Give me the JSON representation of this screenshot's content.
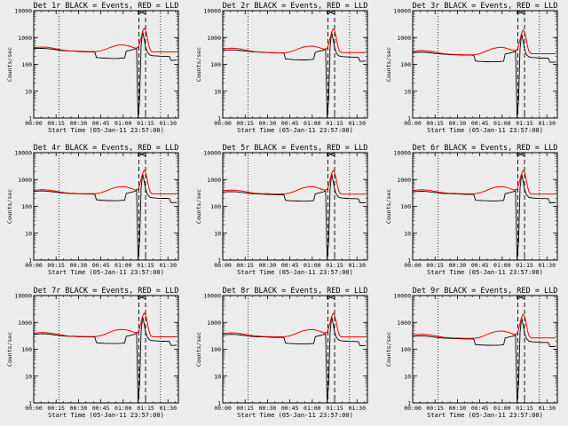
{
  "figure": {
    "background": "#ececec",
    "axis_color": "#000000"
  },
  "chart_data": {
    "type": "line",
    "layout": "3x3 grid",
    "shared": {
      "xlabel": "Start Time (05-Jan-11 23:57:00)",
      "ylabel": "Counts/sec",
      "x_unit": "minutes after 00:00",
      "xlim": [
        0,
        97
      ],
      "ylim": [
        1,
        10000
      ],
      "yscale": "log",
      "xticks": [
        0,
        15,
        30,
        45,
        60,
        75,
        90
      ],
      "xtick_labels": [
        "00:00",
        "00:15",
        "00:30",
        "00:45",
        "01:00",
        "01:15",
        "01:30"
      ],
      "yticks": [
        1,
        10,
        100,
        1000,
        10000
      ],
      "ytick_labels": [
        "1",
        "10",
        "100",
        "1000",
        "10000"
      ],
      "vlines_dotted": [
        17,
        85
      ],
      "vlines_dashed": [
        70.5,
        75
      ],
      "marker_x": 72.5,
      "series_colors": {
        "events": "#000000",
        "lld": "#ff0000"
      },
      "events_x": [
        0,
        3,
        6,
        9,
        12,
        15,
        18,
        21,
        24,
        27,
        30,
        33,
        36,
        39,
        41,
        42,
        44,
        47,
        50,
        53,
        56,
        59,
        61,
        62,
        64,
        67,
        69,
        70,
        71,
        72,
        73,
        74,
        75,
        76,
        77,
        78,
        80,
        83,
        86,
        89,
        91,
        92,
        94,
        96
      ],
      "lld_x": [
        0,
        3,
        6,
        9,
        12,
        15,
        18,
        21,
        24,
        27,
        30,
        33,
        36,
        39,
        42,
        45,
        48,
        51,
        54,
        57,
        60,
        62,
        64,
        66,
        68,
        70,
        71,
        72,
        73,
        74,
        75,
        76,
        77,
        78,
        79,
        80,
        83,
        86,
        89,
        92,
        95,
        96
      ]
    },
    "panels": [
      {
        "title": "Det 1r BLACK = Events, RED = LLD",
        "events": [
          380,
          390,
          395,
          385,
          370,
          350,
          330,
          320,
          315,
          310,
          300,
          295,
          290,
          290,
          285,
          180,
          175,
          170,
          168,
          165,
          165,
          170,
          175,
          310,
          330,
          360,
          400,
          1,
          5,
          500,
          1700,
          900,
          450,
          300,
          250,
          220,
          210,
          205,
          200,
          200,
          195,
          140,
          140,
          145
        ],
        "lld": [
          420,
          430,
          440,
          430,
          410,
          380,
          350,
          330,
          320,
          315,
          310,
          305,
          300,
          300,
          300,
          320,
          360,
          420,
          480,
          520,
          530,
          510,
          480,
          440,
          400,
          420,
          600,
          1000,
          1700,
          2200,
          1900,
          1100,
          550,
          350,
          300,
          290,
          290,
          290,
          290,
          290,
          290,
          290
        ]
      },
      {
        "title": "Det 2r BLACK = Events, RED = LLD",
        "events": [
          330,
          340,
          345,
          340,
          325,
          310,
          300,
          290,
          285,
          280,
          275,
          270,
          265,
          265,
          262,
          160,
          155,
          150,
          148,
          146,
          146,
          150,
          155,
          280,
          300,
          330,
          370,
          1,
          5,
          460,
          1600,
          850,
          420,
          280,
          230,
          205,
          195,
          190,
          185,
          185,
          180,
          130,
          130,
          135
        ],
        "lld": [
          380,
          390,
          400,
          390,
          370,
          345,
          320,
          300,
          290,
          285,
          280,
          275,
          270,
          270,
          272,
          290,
          330,
          385,
          440,
          470,
          480,
          460,
          430,
          400,
          370,
          390,
          560,
          950,
          1600,
          2100,
          1800,
          1050,
          520,
          330,
          285,
          275,
          275,
          275,
          275,
          275,
          275,
          275
        ]
      },
      {
        "title": "Det 3r BLACK = Events, RED = LLD",
        "events": [
          270,
          280,
          285,
          280,
          270,
          255,
          245,
          238,
          232,
          228,
          225,
          222,
          220,
          220,
          218,
          135,
          130,
          128,
          126,
          125,
          125,
          128,
          132,
          240,
          255,
          280,
          310,
          1,
          5,
          400,
          1400,
          750,
          380,
          250,
          210,
          190,
          180,
          175,
          170,
          170,
          168,
          120,
          120,
          122
        ],
        "lld": [
          310,
          320,
          330,
          320,
          305,
          285,
          265,
          250,
          240,
          235,
          232,
          230,
          228,
          228,
          230,
          250,
          290,
          340,
          390,
          420,
          430,
          410,
          380,
          350,
          320,
          340,
          500,
          850,
          1450,
          1900,
          1650,
          950,
          470,
          300,
          260,
          250,
          250,
          250,
          250,
          250,
          250,
          250
        ]
      },
      {
        "title": "Det 4r BLACK = Events, RED = LLD",
        "events": [
          360,
          370,
          375,
          368,
          352,
          335,
          318,
          308,
          302,
          298,
          292,
          288,
          285,
          285,
          282,
          175,
          170,
          166,
          164,
          162,
          162,
          166,
          170,
          300,
          320,
          350,
          390,
          1,
          5,
          480,
          1650,
          880,
          440,
          295,
          245,
          218,
          208,
          202,
          198,
          198,
          194,
          138,
          138,
          142
        ],
        "lld": [
          400,
          410,
          420,
          410,
          390,
          365,
          340,
          320,
          310,
          305,
          300,
          298,
          295,
          295,
          298,
          320,
          365,
          430,
          495,
          535,
          545,
          525,
          490,
          450,
          410,
          430,
          610,
          1020,
          1700,
          2200,
          1900,
          1100,
          550,
          350,
          300,
          290,
          290,
          290,
          290,
          290,
          290,
          290
        ]
      },
      {
        "title": "Det 5r BLACK = Events, RED = LLD",
        "events": [
          340,
          350,
          355,
          348,
          333,
          318,
          302,
          293,
          288,
          284,
          280,
          276,
          272,
          272,
          270,
          168,
          163,
          160,
          158,
          156,
          156,
          160,
          164,
          290,
          310,
          340,
          380,
          1,
          5,
          470,
          1620,
          870,
          430,
          288,
          240,
          214,
          204,
          198,
          194,
          194,
          190,
          135,
          135,
          138
        ],
        "lld": [
          385,
          395,
          405,
          395,
          378,
          355,
          330,
          312,
          302,
          298,
          294,
          291,
          288,
          288,
          292,
          315,
          360,
          425,
          490,
          530,
          540,
          520,
          485,
          445,
          405,
          425,
          600,
          1000,
          1680,
          2150,
          1850,
          1080,
          540,
          345,
          296,
          286,
          286,
          286,
          286,
          286,
          286,
          286
        ]
      },
      {
        "title": "Det 6r BLACK = Events, RED = LLD",
        "events": [
          350,
          360,
          365,
          358,
          343,
          327,
          311,
          301,
          296,
          292,
          287,
          283,
          280,
          280,
          278,
          172,
          167,
          163,
          161,
          159,
          159,
          163,
          167,
          295,
          315,
          345,
          385,
          1,
          5,
          475,
          1640,
          875,
          435,
          292,
          243,
          216,
          206,
          200,
          196,
          196,
          192,
          136,
          136,
          140
        ],
        "lld": [
          395,
          405,
          415,
          405,
          386,
          362,
          337,
          318,
          308,
          303,
          299,
          296,
          293,
          293,
          296,
          318,
          362,
          428,
          492,
          532,
          542,
          522,
          488,
          448,
          408,
          428,
          605,
          1010,
          1690,
          2180,
          1880,
          1090,
          545,
          348,
          298,
          288,
          288,
          288,
          288,
          288,
          288,
          288
        ]
      },
      {
        "title": "Det 7r BLACK = Events, RED = LLD",
        "events": [
          360,
          370,
          376,
          369,
          353,
          336,
          319,
          309,
          303,
          299,
          293,
          289,
          286,
          286,
          283,
          176,
          171,
          167,
          165,
          163,
          163,
          167,
          171,
          301,
          321,
          351,
          391,
          1,
          5,
          480,
          1660,
          885,
          442,
          296,
          246,
          219,
          209,
          203,
          199,
          199,
          195,
          139,
          139,
          143
        ],
        "lld": [
          402,
          412,
          422,
          412,
          392,
          367,
          342,
          322,
          312,
          307,
          302,
          299,
          296,
          296,
          300,
          322,
          367,
          432,
          497,
          537,
          547,
          527,
          492,
          452,
          412,
          432,
          612,
          1025,
          1710,
          2210,
          1910,
          1105,
          552,
          352,
          301,
          291,
          291,
          291,
          291,
          291,
          291,
          291
        ]
      },
      {
        "title": "Det 8r BLACK = Events, RED = LLD",
        "events": [
          345,
          355,
          360,
          353,
          338,
          322,
          306,
          296,
          291,
          287,
          283,
          279,
          276,
          276,
          274,
          170,
          165,
          161,
          159,
          157,
          157,
          161,
          165,
          292,
          312,
          342,
          382,
          1,
          5,
          472,
          1630,
          872,
          432,
          290,
          241,
          215,
          205,
          199,
          195,
          195,
          191,
          135,
          135,
          139
        ],
        "lld": [
          390,
          400,
          410,
          400,
          382,
          358,
          333,
          315,
          305,
          300,
          296,
          293,
          290,
          290,
          294,
          316,
          361,
          426,
          490,
          530,
          540,
          520,
          486,
          446,
          406,
          426,
          602,
          1005,
          1685,
          2160,
          1860,
          1085,
          542,
          346,
          297,
          287,
          287,
          287,
          287,
          287,
          287,
          287
        ]
      },
      {
        "title": "Det 9r BLACK = Events, RED = LLD",
        "events": [
          300,
          310,
          315,
          308,
          295,
          281,
          268,
          260,
          255,
          251,
          247,
          244,
          241,
          241,
          239,
          150,
          146,
          143,
          141,
          140,
          140,
          143,
          147,
          262,
          280,
          305,
          340,
          1,
          5,
          430,
          1500,
          800,
          400,
          265,
          222,
          200,
          190,
          185,
          180,
          180,
          177,
          126,
          126,
          129
        ],
        "lld": [
          345,
          355,
          365,
          355,
          338,
          316,
          294,
          278,
          268,
          263,
          260,
          257,
          254,
          254,
          258,
          278,
          318,
          375,
          432,
          466,
          475,
          458,
          427,
          393,
          358,
          376,
          535,
          900,
          1520,
          1980,
          1720,
          990,
          495,
          318,
          275,
          265,
          265,
          265,
          265,
          265,
          265,
          265
        ]
      }
    ]
  }
}
